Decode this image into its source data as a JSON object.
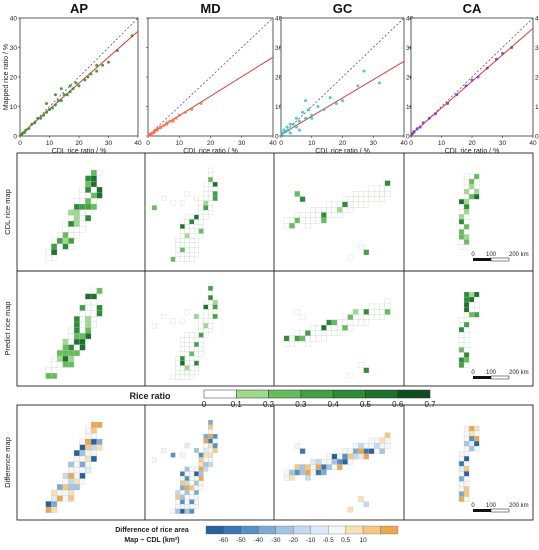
{
  "panel_titles": [
    "AP",
    "MD",
    "GC",
    "CA"
  ],
  "row_labels": [
    "CDL rice map",
    "Predict rice map",
    "Difference map"
  ],
  "colors": {
    "AP": "#2e8b2e",
    "MD": "#ff7043",
    "GC": "#26c6c6",
    "CA": "#6a3ad8",
    "fit_line": "#e53935",
    "identity_line": "#444444",
    "rice_scale": [
      "#ffffff",
      "#9fd88f",
      "#67bd5e",
      "#43a047",
      "#2e8b3a",
      "#1f6f2d",
      "#0e4d1c"
    ],
    "diff_scale": [
      "#2b5f9e",
      "#3d76b3",
      "#5a8fc4",
      "#7fa9d3",
      "#a3c3e2",
      "#c4d8ee",
      "#e0ebf6",
      "#f6f6f6",
      "#f8dfb6",
      "#f3c786",
      "#eaa74f"
    ]
  },
  "rice_legend": {
    "title": "Rice ratio",
    "ticks": [
      "0",
      "0.1",
      "0.2",
      "0.3",
      "0.4",
      "0.5",
      "0.6",
      "0.7"
    ]
  },
  "diff_legend": {
    "title_line1": "Difference of rice area",
    "title_line2": "Map − CDL (km²)",
    "ticks": [
      "-60",
      "-50",
      "-40",
      "-30",
      "-20",
      "-10",
      "-0.5",
      "0.5",
      "10"
    ]
  },
  "scale_bar": {
    "labels": [
      "0",
      "100",
      "200 km"
    ]
  },
  "chart_data": [
    {
      "type": "scatter",
      "title": "AP",
      "xlabel": "CDL rice ratio / %",
      "ylabel": "Mapped rice ratio / %",
      "xlim": [
        0,
        40
      ],
      "ylim": [
        0,
        40
      ],
      "xticks": [
        "0",
        "10",
        "20",
        "30",
        "40"
      ],
      "yticks": [
        "0",
        "10",
        "20",
        "30",
        "40"
      ],
      "fit": {
        "slope": 0.88,
        "intercept": 0.3
      },
      "x": [
        0.5,
        1,
        1.5,
        2,
        3,
        4,
        5,
        6,
        7,
        8,
        9,
        10,
        11,
        12,
        13,
        14,
        15,
        16,
        17,
        18,
        20,
        22,
        24,
        26,
        28,
        30,
        33,
        38,
        9,
        12,
        14,
        17,
        19,
        23,
        26
      ],
      "y": [
        0.5,
        1,
        1.2,
        2,
        2.5,
        4,
        4.5,
        6,
        6,
        7,
        8,
        9,
        9.5,
        10.5,
        12,
        12,
        14,
        14,
        15,
        16,
        17,
        19,
        21,
        22,
        24,
        25,
        29,
        34,
        11,
        14,
        16,
        17,
        18,
        20,
        24
      ]
    },
    {
      "type": "scatter",
      "title": "MD",
      "xlabel": "CDL rice ratio / %",
      "ylabel": "",
      "xlim": [
        0,
        40
      ],
      "ylim": [
        0,
        40
      ],
      "xticks": [
        "0",
        "10",
        "20",
        "30",
        "40"
      ],
      "yticks": [
        "0",
        "10",
        "20",
        "30",
        "40"
      ],
      "fit": {
        "slope": 0.66,
        "intercept": 0.3
      },
      "x": [
        0.3,
        0.6,
        1,
        1.5,
        2,
        2.5,
        3,
        4,
        5,
        6,
        7,
        8,
        9,
        10,
        12,
        14,
        17,
        1,
        2,
        3,
        4,
        6,
        8
      ],
      "y": [
        0.3,
        0.5,
        0.8,
        1,
        1.5,
        2,
        2,
        3,
        3.5,
        4,
        5,
        5.5,
        6,
        7,
        8,
        9,
        11,
        0.5,
        1.2,
        2.5,
        2.8,
        4.5,
        5
      ],
      "ylabel_shared": true
    },
    {
      "type": "scatter",
      "title": "GC",
      "xlabel": "CDL rice ratio / %",
      "ylabel": "",
      "xlim": [
        0,
        40
      ],
      "ylim": [
        0,
        40
      ],
      "xticks": [
        "0",
        "10",
        "20",
        "30",
        "40"
      ],
      "yticks": [
        "0",
        "10",
        "20",
        "30",
        "40"
      ],
      "fit": {
        "slope": 0.62,
        "intercept": 0.5
      },
      "x": [
        0.3,
        0.5,
        1,
        1.5,
        2,
        2.5,
        3,
        4,
        5,
        6,
        7,
        8,
        9,
        10,
        12,
        14,
        16,
        18,
        20,
        25,
        27,
        32,
        3,
        5,
        6,
        8,
        10
      ],
      "y": [
        0.5,
        1,
        2,
        1.5,
        3,
        2,
        4,
        4,
        6,
        5,
        8,
        6,
        9,
        7,
        10,
        9,
        13,
        11,
        12,
        17,
        22,
        18,
        1,
        3,
        2,
        12,
        6
      ]
    },
    {
      "type": "scatter",
      "title": "CA",
      "xlabel": "CDL rice ratio / %",
      "ylabel": "",
      "xlim": [
        0,
        40
      ],
      "ylim": [
        0,
        40
      ],
      "xticks": [
        "0",
        "10",
        "20",
        "30",
        "40"
      ],
      "yticks": [
        "0",
        "10",
        "20",
        "30",
        "40"
      ],
      "fit": {
        "slope": 0.9,
        "intercept": 0.5
      },
      "x": [
        0.5,
        1,
        2,
        3,
        4,
        6,
        8,
        12,
        15,
        18,
        20,
        22,
        25,
        28,
        30,
        33
      ],
      "y": [
        0.8,
        1.5,
        2.5,
        3,
        4.5,
        6,
        7.5,
        11,
        14,
        17,
        19,
        20,
        23,
        26,
        28,
        30
      ]
    }
  ]
}
